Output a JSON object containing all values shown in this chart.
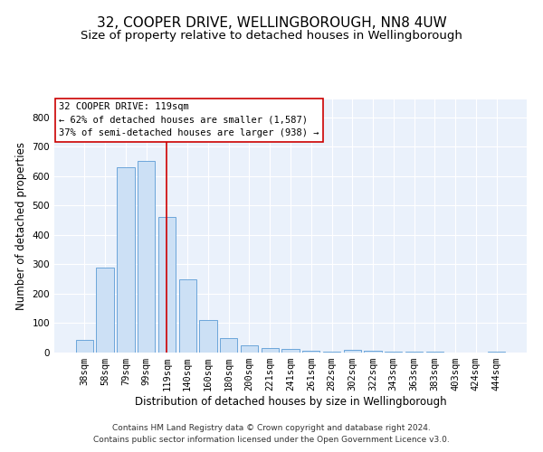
{
  "title": "32, COOPER DRIVE, WELLINGBOROUGH, NN8 4UW",
  "subtitle": "Size of property relative to detached houses in Wellingborough",
  "xlabel": "Distribution of detached houses by size in Wellingborough",
  "ylabel": "Number of detached properties",
  "footer_line1": "Contains HM Land Registry data © Crown copyright and database right 2024.",
  "footer_line2": "Contains public sector information licensed under the Open Government Licence v3.0.",
  "bar_labels": [
    "38sqm",
    "58sqm",
    "79sqm",
    "99sqm",
    "119sqm",
    "140sqm",
    "160sqm",
    "180sqm",
    "200sqm",
    "221sqm",
    "241sqm",
    "261sqm",
    "282sqm",
    "302sqm",
    "322sqm",
    "343sqm",
    "363sqm",
    "383sqm",
    "403sqm",
    "424sqm",
    "444sqm"
  ],
  "bar_values": [
    43,
    290,
    630,
    650,
    460,
    250,
    110,
    50,
    25,
    15,
    13,
    7,
    3,
    8,
    7,
    4,
    3,
    2,
    1,
    1,
    4
  ],
  "bar_color": "#cce0f5",
  "bar_edge_color": "#5b9bd5",
  "highlight_index": 4,
  "highlight_color": "#cc0000",
  "ylim": [
    0,
    860
  ],
  "yticks": [
    0,
    100,
    200,
    300,
    400,
    500,
    600,
    700,
    800
  ],
  "annotation_line1": "32 COOPER DRIVE: 119sqm",
  "annotation_line2": "← 62% of detached houses are smaller (1,587)",
  "annotation_line3": "37% of semi-detached houses are larger (938) →",
  "annotation_box_color": "#ffffff",
  "annotation_box_edge_color": "#cc0000",
  "bg_color": "#eaf1fb",
  "grid_color": "#ffffff",
  "title_fontsize": 11,
  "subtitle_fontsize": 9.5,
  "axis_label_fontsize": 8.5,
  "tick_fontsize": 7.5,
  "annotation_fontsize": 7.5,
  "footer_fontsize": 6.5
}
